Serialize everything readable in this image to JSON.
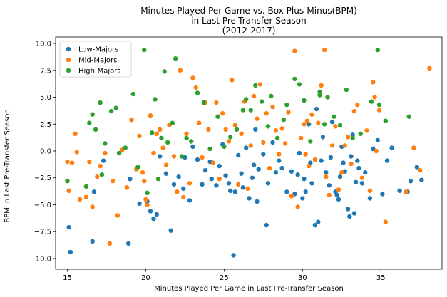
{
  "chart_data": {
    "type": "scatter",
    "title": [
      "Minutes Played Per Game vs. Box Plus-Minus(BPM)",
      "in Last Pre-Transfer Season",
      "(2012-2017)"
    ],
    "xlabel": "Minutes Played Per Game in Last Pre-Transfer Season",
    "ylabel": "BPM in Last Pre-Transfer Season",
    "xlim": [
      14.25,
      38.9
    ],
    "ylim": [
      -11.0,
      10.6
    ],
    "xticks": [
      15,
      20,
      25,
      30,
      35
    ],
    "xtick_labels": [
      "15",
      "20",
      "25",
      "30",
      "35"
    ],
    "yticks": [
      -10,
      -7.5,
      -5,
      -2.5,
      0,
      2.5,
      5,
      7.5,
      10
    ],
    "ytick_labels": [
      "−10.0",
      "−7.5",
      "−5.0",
      "−2.5",
      "0.0",
      "2.5",
      "5.0",
      "7.5",
      "10.0"
    ],
    "grid": false,
    "legend": "upper-left",
    "series": [
      {
        "name": "Low-Majors",
        "color": "#1f77b4",
        "points": [
          [
            15.1,
            -7.1
          ],
          [
            15.2,
            -9.4
          ],
          [
            16.7,
            -3.8
          ],
          [
            16.6,
            -8.4
          ],
          [
            17.3,
            -0.9
          ],
          [
            18.9,
            -8.6
          ],
          [
            19.0,
            -2.6
          ],
          [
            19.6,
            -4.9
          ],
          [
            20.1,
            -4.7
          ],
          [
            20.3,
            -5.6
          ],
          [
            20.5,
            -6.3
          ],
          [
            20.7,
            -5.9
          ],
          [
            20.9,
            -0.5
          ],
          [
            21.3,
            -2.1
          ],
          [
            21.6,
            -7.4
          ],
          [
            21.8,
            -3.1
          ],
          [
            22.1,
            -2.4
          ],
          [
            22.4,
            -3.5
          ],
          [
            22.5,
            -0.6
          ],
          [
            22.8,
            -4.6
          ],
          [
            23.0,
            0.4
          ],
          [
            23.3,
            -0.8
          ],
          [
            23.6,
            -3.1
          ],
          [
            23.8,
            -1.8
          ],
          [
            24.1,
            -1.0
          ],
          [
            24.2,
            -2.6
          ],
          [
            24.5,
            -3.2
          ],
          [
            24.7,
            -1.4
          ],
          [
            24.9,
            0.6
          ],
          [
            25.1,
            -2.3
          ],
          [
            25.3,
            -3.0
          ],
          [
            25.4,
            -3.7
          ],
          [
            25.6,
            -9.7
          ],
          [
            25.7,
            -3.8
          ],
          [
            25.9,
            -0.4
          ],
          [
            26.1,
            -2.1
          ],
          [
            26.2,
            -3.4
          ],
          [
            26.4,
            0.3
          ],
          [
            26.6,
            -4.4
          ],
          [
            26.8,
            -2.5
          ],
          [
            26.9,
            -1.3
          ],
          [
            27.0,
            2.0
          ],
          [
            27.1,
            -4.7
          ],
          [
            27.2,
            -1.7
          ],
          [
            27.5,
            -0.3
          ],
          [
            27.7,
            -6.9
          ],
          [
            27.8,
            -3.0
          ],
          [
            28.1,
            0.8
          ],
          [
            28.3,
            -2.0
          ],
          [
            28.5,
            -0.9
          ],
          [
            28.7,
            -1.6
          ],
          [
            29.0,
            -3.8
          ],
          [
            29.3,
            -1.9
          ],
          [
            29.5,
            -4.0
          ],
          [
            29.7,
            -2.2
          ],
          [
            29.8,
            -0.2
          ],
          [
            30.0,
            -4.4
          ],
          [
            30.1,
            -2.6
          ],
          [
            30.2,
            -3.8
          ],
          [
            30.4,
            2.5
          ],
          [
            30.5,
            -1.1
          ],
          [
            30.6,
            -3.0
          ],
          [
            30.8,
            -6.9
          ],
          [
            30.9,
            3.9
          ],
          [
            31.0,
            -6.6
          ],
          [
            31.2,
            -0.9
          ],
          [
            31.3,
            1.3
          ],
          [
            31.5,
            -2.0
          ],
          [
            31.7,
            -3.2
          ],
          [
            31.8,
            -0.6
          ],
          [
            31.9,
            2.7
          ],
          [
            32.1,
            -3.8
          ],
          [
            32.2,
            -4.1
          ],
          [
            32.3,
            -4.5
          ],
          [
            32.4,
            -2.4
          ],
          [
            32.5,
            0.4
          ],
          [
            32.6,
            -1.1
          ],
          [
            32.7,
            -1.9
          ],
          [
            32.9,
            -5.4
          ],
          [
            33.0,
            -6.1
          ],
          [
            33.1,
            -0.5
          ],
          [
            33.2,
            1.5
          ],
          [
            33.3,
            -5.8
          ],
          [
            33.4,
            -2.9
          ],
          [
            33.5,
            -0.9
          ],
          [
            33.6,
            -1.6
          ],
          [
            33.8,
            -3.0
          ],
          [
            34.0,
            -2.0
          ],
          [
            34.3,
            -4.4
          ],
          [
            34.5,
            0.2
          ],
          [
            34.8,
            1.0
          ],
          [
            35.1,
            -4.0
          ],
          [
            35.4,
            -0.9
          ],
          [
            35.7,
            0.3
          ],
          [
            36.2,
            -3.7
          ],
          [
            36.7,
            -3.8
          ],
          [
            36.9,
            -2.8
          ],
          [
            37.3,
            -1.5
          ],
          [
            37.6,
            -2.7
          ]
        ]
      },
      {
        "name": "Mid-Majors",
        "color": "#ff7f0e",
        "points": [
          [
            15.0,
            -1.0
          ],
          [
            15.1,
            -3.7
          ],
          [
            15.3,
            -1.1
          ],
          [
            15.5,
            1.6
          ],
          [
            15.6,
            -0.1
          ],
          [
            15.8,
            -4.5
          ],
          [
            16.2,
            -4.3
          ],
          [
            16.4,
            -1.0
          ],
          [
            16.6,
            -5.2
          ],
          [
            16.9,
            -2.4
          ],
          [
            17.1,
            -1.4
          ],
          [
            17.4,
            -0.2
          ],
          [
            17.7,
            -8.6
          ],
          [
            17.9,
            -2.8
          ],
          [
            18.2,
            -6.0
          ],
          [
            18.5,
            0.1
          ],
          [
            18.8,
            -3.4
          ],
          [
            19.1,
            2.9
          ],
          [
            19.4,
            -1.7
          ],
          [
            19.6,
            1.4
          ],
          [
            19.8,
            -2.0
          ],
          [
            19.9,
            -2.8
          ],
          [
            20.0,
            -4.5
          ],
          [
            20.1,
            -5.0
          ],
          [
            20.3,
            3.3
          ],
          [
            20.5,
            -0.2
          ],
          [
            20.7,
            1.6
          ],
          [
            20.9,
            2.0
          ],
          [
            21.1,
            0.3
          ],
          [
            21.3,
            -1.3
          ],
          [
            21.5,
            2.4
          ],
          [
            21.8,
            -0.5
          ],
          [
            22.0,
            -3.8
          ],
          [
            22.2,
            7.5
          ],
          [
            22.4,
            -4.3
          ],
          [
            22.6,
            1.6
          ],
          [
            22.8,
            -3.0
          ],
          [
            23.0,
            6.8
          ],
          [
            23.2,
            5.9
          ],
          [
            23.4,
            2.6
          ],
          [
            23.6,
            -0.6
          ],
          [
            23.8,
            4.5
          ],
          [
            24.0,
            2.0
          ],
          [
            24.3,
            -1.1
          ],
          [
            24.5,
            4.5
          ],
          [
            24.7,
            -2.6
          ],
          [
            24.9,
            3.5
          ],
          [
            25.1,
            2.0
          ],
          [
            25.3,
            0.9
          ],
          [
            25.5,
            6.6
          ],
          [
            25.7,
            2.4
          ],
          [
            25.9,
            -3.1
          ],
          [
            26.1,
            1.6
          ],
          [
            26.3,
            4.6
          ],
          [
            26.5,
            -3.5
          ],
          [
            26.7,
            0.5
          ],
          [
            26.9,
            5.1
          ],
          [
            27.1,
            3.0
          ],
          [
            27.3,
            6.2
          ],
          [
            27.5,
            0.8
          ],
          [
            27.7,
            3.5
          ],
          [
            27.9,
            -1.6
          ],
          [
            28.1,
            4.1
          ],
          [
            28.3,
            1.9
          ],
          [
            28.5,
            -0.3
          ],
          [
            28.7,
            2.1
          ],
          [
            28.9,
            0.7
          ],
          [
            29.1,
            3.6
          ],
          [
            29.3,
            -4.2
          ],
          [
            29.5,
            9.3
          ],
          [
            29.7,
            -5.2
          ],
          [
            29.9,
            1.2
          ],
          [
            30.1,
            2.5
          ],
          [
            30.2,
            -0.3
          ],
          [
            30.4,
            -1.4
          ],
          [
            30.6,
            3.4
          ],
          [
            30.8,
            -0.8
          ],
          [
            31.0,
            2.6
          ],
          [
            31.2,
            6.1
          ],
          [
            31.4,
            9.4
          ],
          [
            31.5,
            -2.4
          ],
          [
            31.7,
            -4.1
          ],
          [
            31.9,
            0.5
          ],
          [
            32.1,
            2.3
          ],
          [
            32.3,
            -3.6
          ],
          [
            32.5,
            -2.0
          ],
          [
            32.7,
            0.5
          ],
          [
            32.9,
            1.3
          ],
          [
            33.1,
            -1.2
          ],
          [
            33.3,
            3.7
          ],
          [
            33.5,
            4.3
          ],
          [
            33.8,
            -2.5
          ],
          [
            34.1,
            1.9
          ],
          [
            34.3,
            -3.7
          ],
          [
            34.5,
            6.4
          ],
          [
            34.7,
            0.0
          ],
          [
            34.9,
            3.8
          ],
          [
            35.3,
            -6.6
          ],
          [
            36.6,
            -3.8
          ],
          [
            37.1,
            0.3
          ],
          [
            37.5,
            -1.8
          ],
          [
            38.1,
            7.7
          ],
          [
            34.6,
            5.0
          ],
          [
            30.3,
            2.8
          ]
        ]
      },
      {
        "name": "High-Majors",
        "color": "#2ca02c",
        "points": [
          [
            15.0,
            -2.8
          ],
          [
            16.2,
            -3.3
          ],
          [
            16.4,
            2.6
          ],
          [
            16.6,
            3.4
          ],
          [
            16.8,
            2.0
          ],
          [
            17.1,
            4.5
          ],
          [
            17.2,
            -2.2
          ],
          [
            17.4,
            0.7
          ],
          [
            17.8,
            3.7
          ],
          [
            18.1,
            4.0
          ],
          [
            18.3,
            -0.2
          ],
          [
            18.7,
            0.3
          ],
          [
            19.2,
            5.3
          ],
          [
            19.5,
            -1.5
          ],
          [
            19.9,
            9.4
          ],
          [
            20.1,
            -3.9
          ],
          [
            20.4,
            1.7
          ],
          [
            20.6,
            4.8
          ],
          [
            20.8,
            -2.6
          ],
          [
            21.0,
            1.2
          ],
          [
            21.2,
            7.4
          ],
          [
            21.4,
            0.8
          ],
          [
            21.7,
            2.6
          ],
          [
            21.9,
            8.6
          ],
          [
            22.3,
            -0.5
          ],
          [
            22.6,
            1.2
          ],
          [
            22.9,
            0.9
          ],
          [
            23.3,
            5.4
          ],
          [
            23.7,
            4.5
          ],
          [
            24.1,
            0.2
          ],
          [
            24.6,
            3.2
          ],
          [
            25.0,
            0.4
          ],
          [
            25.4,
            1.3
          ],
          [
            25.8,
            2.0
          ],
          [
            26.2,
            3.8
          ],
          [
            26.4,
            4.8
          ],
          [
            26.7,
            3.8
          ],
          [
            27.0,
            6.1
          ],
          [
            27.4,
            4.6
          ],
          [
            27.8,
            2.3
          ],
          [
            28.0,
            5.1
          ],
          [
            28.4,
            1.2
          ],
          [
            28.8,
            2.9
          ],
          [
            29.0,
            4.3
          ],
          [
            29.5,
            6.7
          ],
          [
            29.8,
            6.2
          ],
          [
            30.1,
            4.7
          ],
          [
            30.5,
            0.9
          ],
          [
            31.1,
            5.5
          ],
          [
            31.4,
            2.5
          ],
          [
            31.6,
            5.0
          ],
          [
            32.0,
            3.2
          ],
          [
            32.4,
            2.4
          ],
          [
            32.8,
            5.7
          ],
          [
            33.2,
            1.2
          ],
          [
            33.7,
            1.6
          ],
          [
            34.4,
            4.6
          ],
          [
            34.8,
            9.4
          ],
          [
            35.3,
            2.8
          ],
          [
            36.8,
            3.2
          ],
          [
            34.9,
            4.3
          ],
          [
            31.1,
            5.2
          ]
        ]
      }
    ]
  }
}
